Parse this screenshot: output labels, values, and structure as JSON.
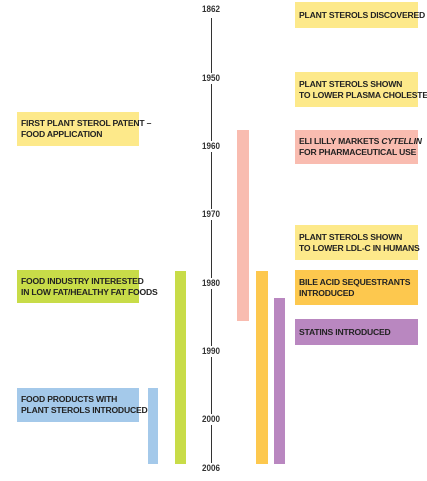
{
  "timeline": {
    "years": [
      "1862",
      "1950",
      "1960",
      "1970",
      "1980",
      "1990",
      "2000",
      "2006"
    ]
  },
  "events": {
    "plant_sterols_discovered": {
      "lines": [
        "PLANT STEROLS DISCOVERED"
      ],
      "color": "#fde98a"
    },
    "plasma_cholesterol": {
      "lines": [
        "PLANT STEROLS SHOWN",
        "TO LOWER PLASMA CHOLESTEROL"
      ],
      "color": "#fde98a"
    },
    "first_patent": {
      "lines": [
        "FIRST PLANT STEROL PATENT –",
        "FOOD APPLICATION"
      ],
      "color": "#fde98a"
    },
    "eli_lilly": {
      "line1_prefix": "ELI LILLY MARKETS ",
      "line1_italic": "CYTELLIN",
      "line2": "FOR PHARMACEUTICAL USE",
      "color": "#f9bcb0"
    },
    "ldl_c": {
      "lines": [
        "PLANT STEROLS SHOWN",
        "TO LOWER LDL-C IN HUMANS"
      ],
      "color": "#fde98a"
    },
    "food_industry": {
      "lines": [
        "FOOD INDUSTRY INTERESTED",
        "IN LOW FAT/HEALTHY FAT FOODS"
      ],
      "color": "#c8dc48"
    },
    "bile_acid": {
      "lines": [
        "BILE ACID SEQUESTRANTS",
        "INTRODUCED"
      ],
      "color": "#fdc84e"
    },
    "statins": {
      "lines": [
        "STATINS INTRODUCED"
      ],
      "color": "#b987c0"
    },
    "food_products": {
      "lines": [
        "FOOD PRODUCTS WITH",
        "PLANT STEROLS INTRODUCED"
      ],
      "color": "#a4c9ea"
    }
  },
  "bars": {
    "food_products": {
      "color": "#a4c9ea"
    },
    "food_industry": {
      "color": "#c8dc48"
    },
    "eli_lilly": {
      "color": "#f9bcb0"
    },
    "bile_acid": {
      "color": "#fdc84e"
    },
    "statins": {
      "color": "#b987c0"
    }
  }
}
